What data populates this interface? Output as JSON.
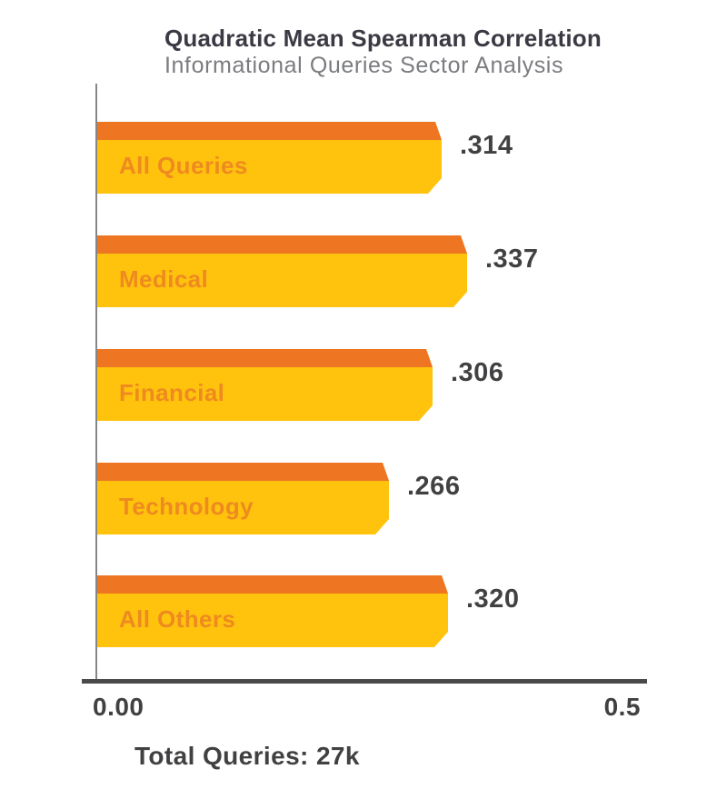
{
  "chart_data": {
    "type": "bar",
    "orientation": "horizontal",
    "title": "Quadratic Mean Spearman Correlation",
    "subtitle": "Informational Queries Sector Analysis",
    "categories": [
      "All Queries",
      "Medical",
      "Financial",
      "Technology",
      "All Others"
    ],
    "values": [
      0.314,
      0.337,
      0.306,
      0.266,
      0.32
    ],
    "value_labels": [
      ".314",
      ".337",
      ".306",
      ".266",
      ".320"
    ],
    "xlim": [
      0,
      0.5
    ],
    "x_tick_labels": [
      "0.00",
      "0.5"
    ],
    "grid": false,
    "legend": false,
    "footnote": "Total Queries: 27k",
    "colors": {
      "bar_fill": "#ffc30d",
      "bar_cap": "#ee7522",
      "category_text": "#ee8a1f",
      "value_text": "#414042",
      "title_text": "#3b3a44",
      "subtitle_text": "#7b7c80",
      "axis": "#4a4a4c",
      "spine": "#85868a"
    }
  }
}
